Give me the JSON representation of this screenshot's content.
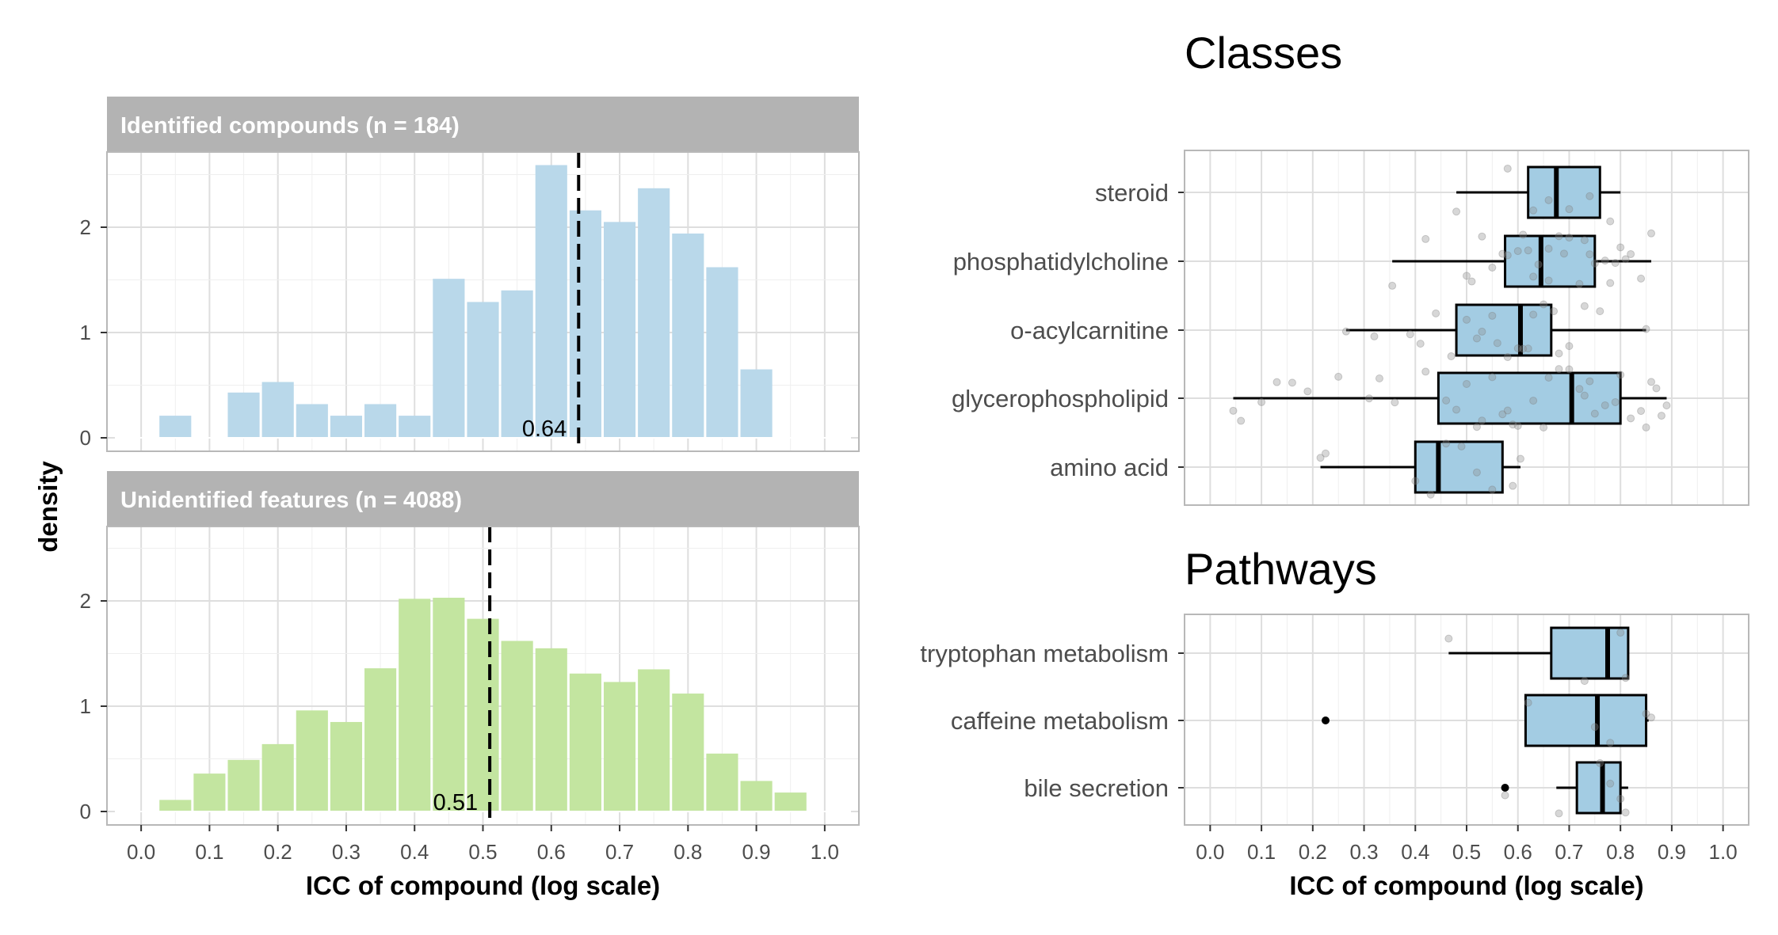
{
  "chart_data": [
    {
      "type": "bar",
      "facet": "Identified compounds (n = 184)",
      "x": [
        0.05,
        0.1,
        0.15,
        0.2,
        0.25,
        0.3,
        0.35,
        0.4,
        0.45,
        0.5,
        0.55,
        0.6,
        0.65,
        0.7,
        0.75,
        0.8,
        0.85,
        0.9,
        0.95
      ],
      "values": [
        0.21,
        0.0,
        0.43,
        0.53,
        0.32,
        0.21,
        0.32,
        0.21,
        1.51,
        1.29,
        1.4,
        2.59,
        2.16,
        2.05,
        2.37,
        1.94,
        1.62,
        0.65,
        0.0
      ],
      "median": 0.64,
      "median_label": "0.64",
      "xlim": [
        0.0,
        1.0
      ],
      "ylim": [
        0,
        2.6
      ],
      "yticks": [
        "0",
        "1",
        "2"
      ],
      "color": "#b9d8ea",
      "ylabel": "density"
    },
    {
      "type": "bar",
      "facet": "Unidentified features (n = 4088)",
      "x": [
        0.05,
        0.1,
        0.15,
        0.2,
        0.25,
        0.3,
        0.35,
        0.4,
        0.45,
        0.5,
        0.55,
        0.6,
        0.65,
        0.7,
        0.75,
        0.8,
        0.85,
        0.9,
        0.95
      ],
      "values": [
        0.11,
        0.36,
        0.49,
        0.64,
        0.96,
        0.85,
        1.36,
        2.02,
        2.03,
        1.83,
        1.62,
        1.55,
        1.31,
        1.23,
        1.35,
        1.12,
        0.55,
        0.29,
        0.18
      ],
      "median": 0.51,
      "median_label": "0.51",
      "xlim": [
        0.0,
        1.0
      ],
      "ylim": [
        0,
        2.6
      ],
      "yticks": [
        "0",
        "1",
        "2"
      ],
      "color": "#c3e5a0",
      "xlabel": "ICC of compound (log scale)",
      "xticks": [
        "0.0",
        "0.1",
        "0.2",
        "0.3",
        "0.4",
        "0.5",
        "0.6",
        "0.7",
        "0.8",
        "0.9",
        "1.0"
      ]
    },
    {
      "type": "box",
      "title": "Classes",
      "categories": [
        "steroid",
        "phosphatidylcholine",
        "o-acylcarnitine",
        "glycerophospholipid",
        "amino acid"
      ],
      "boxes": [
        {
          "min": 0.48,
          "q1": 0.62,
          "median": 0.675,
          "q3": 0.76,
          "max": 0.8,
          "outliers": [],
          "points": [
            0.48,
            0.58,
            0.63,
            0.66,
            0.7,
            0.74,
            0.78
          ]
        },
        {
          "min": 0.355,
          "q1": 0.575,
          "median": 0.645,
          "q3": 0.75,
          "max": 0.86,
          "outliers": [],
          "points": [
            0.355,
            0.42,
            0.5,
            0.53,
            0.55,
            0.58,
            0.6,
            0.62,
            0.63,
            0.64,
            0.66,
            0.68,
            0.7,
            0.72,
            0.73,
            0.75,
            0.77,
            0.79,
            0.8,
            0.82,
            0.84,
            0.86,
            0.51,
            0.61,
            0.69,
            0.74,
            0.57,
            0.78,
            0.66,
            0.81
          ]
        },
        {
          "min": 0.265,
          "q1": 0.48,
          "median": 0.605,
          "q3": 0.665,
          "max": 0.85,
          "outliers": [],
          "points": [
            0.265,
            0.32,
            0.41,
            0.44,
            0.47,
            0.5,
            0.53,
            0.56,
            0.58,
            0.6,
            0.61,
            0.63,
            0.65,
            0.67,
            0.7,
            0.73,
            0.76,
            0.85,
            0.39,
            0.55,
            0.62,
            0.68,
            0.52
          ]
        },
        {
          "min": 0.045,
          "q1": 0.445,
          "median": 0.705,
          "q3": 0.8,
          "max": 0.89,
          "outliers": [],
          "points": [
            0.045,
            0.06,
            0.1,
            0.13,
            0.16,
            0.19,
            0.25,
            0.31,
            0.33,
            0.36,
            0.42,
            0.46,
            0.48,
            0.5,
            0.52,
            0.55,
            0.57,
            0.59,
            0.6,
            0.63,
            0.65,
            0.66,
            0.68,
            0.7,
            0.72,
            0.73,
            0.75,
            0.77,
            0.79,
            0.8,
            0.82,
            0.84,
            0.85,
            0.86,
            0.87,
            0.88,
            0.89,
            0.53,
            0.58,
            0.74
          ]
        },
        {
          "min": 0.215,
          "q1": 0.4,
          "median": 0.445,
          "q3": 0.57,
          "max": 0.605,
          "outliers": [],
          "points": [
            0.215,
            0.225,
            0.4,
            0.43,
            0.46,
            0.49,
            0.52,
            0.55,
            0.59,
            0.605
          ]
        }
      ],
      "xlim": [
        0.0,
        1.0
      ],
      "color": "#a3cce3"
    },
    {
      "type": "box",
      "title": "Pathways",
      "categories": [
        "tryptophan metabolism",
        "caffeine metabolism",
        "bile secretion"
      ],
      "boxes": [
        {
          "min": 0.465,
          "q1": 0.665,
          "median": 0.775,
          "q3": 0.815,
          "max": 0.815,
          "outliers": [],
          "points": [
            0.465,
            0.73,
            0.8,
            0.81
          ]
        },
        {
          "min": 0.615,
          "q1": 0.615,
          "median": 0.755,
          "q3": 0.85,
          "max": 0.855,
          "outliers": [
            0.225
          ],
          "points": [
            0.62,
            0.75,
            0.78,
            0.85,
            0.86
          ]
        },
        {
          "min": 0.675,
          "q1": 0.715,
          "median": 0.765,
          "q3": 0.8,
          "max": 0.815,
          "outliers": [
            0.575
          ],
          "points": [
            0.575,
            0.68,
            0.76,
            0.78,
            0.8,
            0.81
          ]
        }
      ],
      "xlim": [
        0.0,
        1.0
      ],
      "color": "#a3cce3",
      "xlabel": "ICC of compound (log scale)",
      "xticks": [
        "0.0",
        "0.1",
        "0.2",
        "0.3",
        "0.4",
        "0.5",
        "0.6",
        "0.7",
        "0.8",
        "0.9",
        "1.0"
      ]
    }
  ]
}
